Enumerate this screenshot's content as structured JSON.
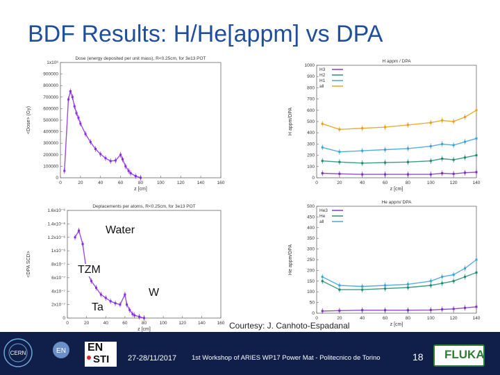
{
  "slide": {
    "title": "BDF Results: H/He[appm] vs DPA",
    "courtesy": "Courtesy: J. Canhoto-Espadanal",
    "labels": {
      "water": "Water",
      "tzm": "TZM",
      "w": "W",
      "ta": "Ta"
    }
  },
  "footer": {
    "date": "27-28/11/2017",
    "workshop": "1st Workshop of ARIES WP17 Power Mat - Politecnico de Torino",
    "page_number": "18",
    "cern_logo_text": "CERN",
    "en_logo_text": "EN",
    "ensti_top": "EN",
    "ensti_bottom": "STI",
    "fluka_text": "FLUKA"
  },
  "colors": {
    "title": "#1f4e9a",
    "footer_bg": "#101f49",
    "purple": "#8a2be2",
    "H3": "#7b2fbe",
    "H2": "#1b8a6b",
    "H1": "#3aa0d8",
    "all": "#e5a00d",
    "He3": "#7b2fbe",
    "He": "#1b8a6b"
  },
  "chart_data": [
    {
      "type": "scatter",
      "title": "Dose (energy deposited per unit mass), R<0.25cm, for 3e13 POT",
      "xlabel": "z [cm]",
      "ylabel": "<Dose> (Gy)",
      "xlim": [
        0,
        160
      ],
      "ylim": [
        0,
        1000000
      ],
      "xticks": [
        "0",
        "20",
        "40",
        "60",
        "80",
        "100",
        "120",
        "140",
        "160"
      ],
      "yticks": [
        "0",
        "100000",
        "200000",
        "300000",
        "400000",
        "500000",
        "600000",
        "700000",
        "800000",
        "900000",
        "1x10⁶"
      ],
      "series": [
        {
          "color": "#8a2be2",
          "x": [
            4,
            8,
            10,
            12,
            14,
            16,
            18,
            20,
            25,
            30,
            35,
            40,
            45,
            50,
            55,
            60,
            62,
            65,
            68,
            70,
            75,
            80
          ],
          "y": [
            60000,
            680000,
            750000,
            700000,
            620000,
            560000,
            520000,
            470000,
            380000,
            310000,
            250000,
            205000,
            170000,
            145000,
            150000,
            200000,
            160000,
            100000,
            60000,
            40000,
            15000,
            0
          ]
        }
      ]
    },
    {
      "type": "scatter",
      "title": "H appm / DPA",
      "xlabel": "z [cm]",
      "ylabel": "H appm/DPA",
      "xlim": [
        0,
        140
      ],
      "ylim": [
        0,
        1000
      ],
      "xticks": [
        "0",
        "20",
        "40",
        "60",
        "80",
        "100",
        "120",
        "140"
      ],
      "yticks": [
        "0",
        "100",
        "200",
        "300",
        "400",
        "500",
        "600",
        "700",
        "800",
        "900",
        "1000"
      ],
      "legend": "top-left",
      "series": [
        {
          "name": "H3",
          "color": "#7b2fbe",
          "x": [
            5,
            20,
            40,
            60,
            80,
            100,
            110,
            120,
            130,
            140
          ],
          "y": [
            40,
            35,
            30,
            30,
            30,
            30,
            40,
            35,
            45,
            50
          ]
        },
        {
          "name": "H2",
          "color": "#1b8a6b",
          "x": [
            5,
            20,
            40,
            60,
            80,
            100,
            110,
            120,
            130,
            140
          ],
          "y": [
            150,
            140,
            130,
            135,
            140,
            150,
            170,
            160,
            180,
            200
          ]
        },
        {
          "name": "H1",
          "color": "#3aa0d8",
          "x": [
            5,
            20,
            40,
            60,
            80,
            100,
            110,
            120,
            130,
            140
          ],
          "y": [
            270,
            230,
            240,
            250,
            260,
            280,
            300,
            290,
            320,
            350
          ]
        },
        {
          "name": "all",
          "color": "#e5a00d",
          "x": [
            5,
            20,
            40,
            60,
            80,
            100,
            110,
            120,
            130,
            140
          ],
          "y": [
            480,
            430,
            440,
            450,
            470,
            490,
            510,
            500,
            540,
            600
          ]
        }
      ]
    },
    {
      "type": "scatter",
      "title": "Deplacements per atoms, R<0.25cm, for 3e13 POT",
      "xlabel": "z [cm]",
      "ylabel": "<DPA SCD>",
      "xlim": [
        0,
        160
      ],
      "ylim": [
        0,
        1.6e-06
      ],
      "xticks": [
        "0",
        "20",
        "40",
        "60",
        "80",
        "100",
        "120",
        "140",
        "160"
      ],
      "yticks": [
        "0",
        "2x10⁻⁷",
        "4x10⁻⁷",
        "6x10⁻⁷",
        "8x10⁻⁷",
        "1x10⁻⁶",
        "1.2x10⁻⁶",
        "1.4x10⁻⁶",
        "1.6x10⁻⁶"
      ],
      "series": [
        {
          "color": "#8a2be2",
          "x": [
            8,
            12,
            16,
            20,
            25,
            30,
            35,
            40,
            45,
            50,
            55,
            60,
            62,
            65,
            68,
            70,
            75,
            80
          ],
          "y": [
            1.2e-06,
            1.3e-06,
            1.1e-06,
            7e-07,
            5.5e-07,
            4.5e-07,
            3.5e-07,
            3e-07,
            2.5e-07,
            2.2e-07,
            2e-07,
            3.5e-07,
            2e-07,
            1.2e-07,
            6e-08,
            4e-08,
            2e-08,
            0
          ]
        }
      ]
    },
    {
      "type": "scatter",
      "title": "He appm/ DPA",
      "xlabel": "z [cm]",
      "ylabel": "He appm/DPA",
      "xlim": [
        0,
        140
      ],
      "ylim": [
        0,
        500
      ],
      "xticks": [
        "0",
        "20",
        "40",
        "60",
        "80",
        "100",
        "120",
        "140"
      ],
      "yticks": [
        "0",
        "50",
        "100",
        "150",
        "200",
        "250",
        "300",
        "350",
        "400",
        "450",
        "500"
      ],
      "legend": "top-left",
      "series": [
        {
          "name": "He3",
          "color": "#7b2fbe",
          "x": [
            5,
            20,
            40,
            60,
            80,
            100,
            110,
            120,
            130,
            140
          ],
          "y": [
            10,
            12,
            14,
            14,
            14,
            15,
            18,
            20,
            25,
            30
          ]
        },
        {
          "name": "He",
          "color": "#1b8a6b",
          "x": [
            5,
            20,
            40,
            60,
            80,
            100,
            110,
            120,
            130,
            140
          ],
          "y": [
            150,
            110,
            110,
            115,
            120,
            130,
            140,
            150,
            170,
            190
          ]
        },
        {
          "name": "all",
          "color": "#3aa0d8",
          "x": [
            5,
            20,
            40,
            60,
            80,
            100,
            110,
            120,
            130,
            140
          ],
          "y": [
            170,
            130,
            125,
            130,
            135,
            150,
            170,
            180,
            210,
            250
          ]
        }
      ]
    }
  ]
}
